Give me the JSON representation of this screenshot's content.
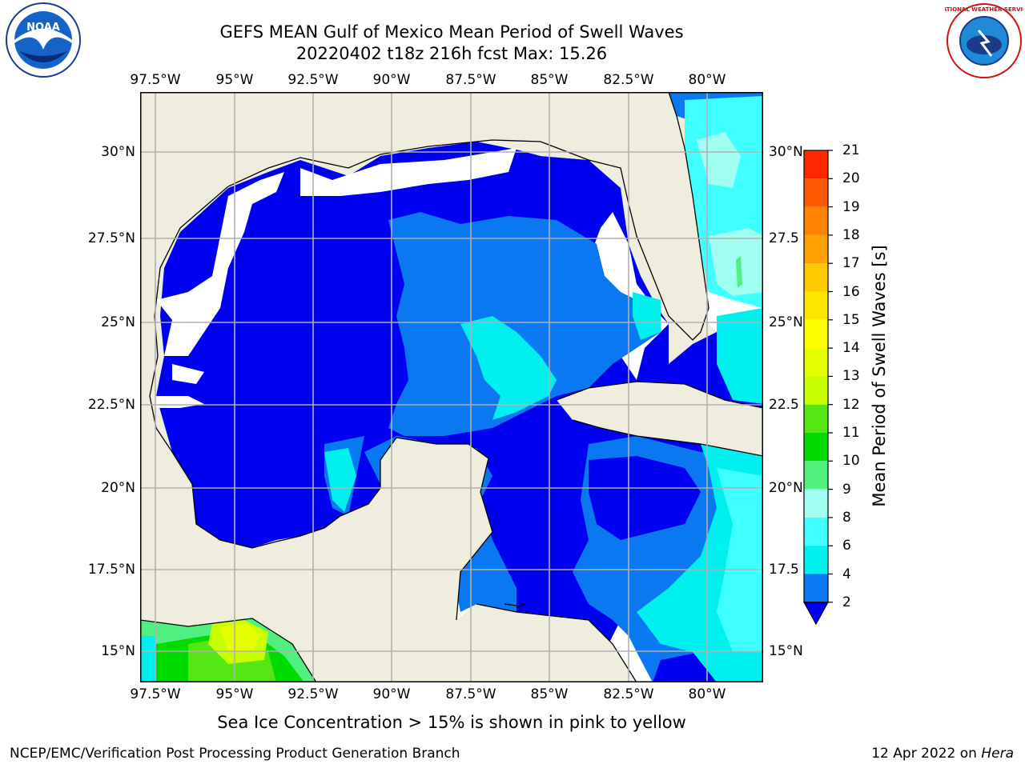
{
  "header": {
    "title_line1": "GEFS MEAN Gulf of Mexico Mean Period of Swell Waves",
    "title_line2": "20220402 t18z 216h fcst   Max: 15.26"
  },
  "map": {
    "lon_labels": [
      "97.5°W",
      "95°W",
      "92.5°W",
      "90°W",
      "87.5°W",
      "85°W",
      "82.5°W",
      "80°W"
    ],
    "lat_labels_left": [
      "30°N",
      "27.5°N",
      "25°N",
      "22.5°N",
      "20°N",
      "17.5°N",
      "15°N"
    ],
    "lat_labels_right": [
      "30°N",
      "27.5",
      "25°N",
      "22.5",
      "20°N",
      "17.5",
      "15°N"
    ],
    "colors": {
      "land": "#efedde",
      "no_data": "#ffffff",
      "p0_2": "#0000f0",
      "p2_4": "#0a78f0",
      "p4_6": "#00f0f0",
      "p6_8": "#40ffff",
      "p8_9": "#a0fff0",
      "p9_10": "#50f080",
      "p10_11": "#00dc00",
      "p11_12": "#55e614",
      "p12_13": "#c8ff00",
      "p13_14": "#e6ff00"
    }
  },
  "colorbar": {
    "title": "Mean Period of Swell Waves [s]",
    "ticks": [
      "2",
      "4",
      "6",
      "8",
      "9",
      "10",
      "11",
      "12",
      "13",
      "14",
      "15",
      "16",
      "17",
      "18",
      "19",
      "20",
      "21"
    ],
    "colors": [
      "#0a78f0",
      "#00f0f0",
      "#40ffff",
      "#a0fff0",
      "#50f080",
      "#00dc00",
      "#55e614",
      "#c8ff00",
      "#e6ff00",
      "#ffff00",
      "#ffe600",
      "#ffc800",
      "#ffa000",
      "#ff8200",
      "#ff5a00",
      "#ff2800"
    ],
    "under_color": "#0000f0"
  },
  "caption": "Sea Ice Concentration > 15% is shown in pink to yellow",
  "footer": {
    "left": "NCEP/EMC/Verification Post Processing Product Generation Branch",
    "right_date": "12 Apr 2022 on ",
    "right_system": "Hera"
  },
  "logos": {
    "noaa_text": "NOAA",
    "nws_text": "NATIONAL WEATHER SERVICE"
  }
}
